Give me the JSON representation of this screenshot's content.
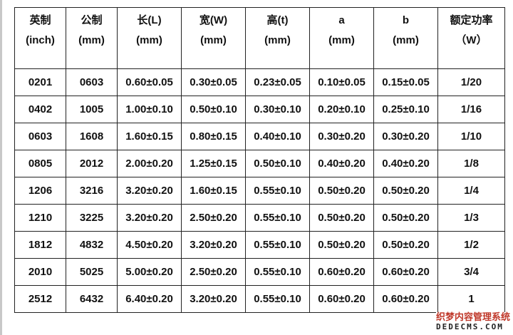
{
  "table": {
    "headers": [
      {
        "line1": "英制",
        "line2": "(inch)"
      },
      {
        "line1": "公制",
        "line2": "(mm)"
      },
      {
        "line1": "长(L)",
        "line2": "(mm)"
      },
      {
        "line1": "宽(W)",
        "line2": "(mm)"
      },
      {
        "line1": "高(t)",
        "line2": "(mm)"
      },
      {
        "line1": "a",
        "line2": "(mm)"
      },
      {
        "line1": "b",
        "line2": "(mm)"
      },
      {
        "line1": "额定功率",
        "line2": "（W）"
      }
    ],
    "rows": [
      [
        "0201",
        "0603",
        "0.60±0.05",
        "0.30±0.05",
        "0.23±0.05",
        "0.10±0.05",
        "0.15±0.05",
        "1/20"
      ],
      [
        "0402",
        "1005",
        "1.00±0.10",
        "0.50±0.10",
        "0.30±0.10",
        "0.20±0.10",
        "0.25±0.10",
        "1/16"
      ],
      [
        "0603",
        "1608",
        "1.60±0.15",
        "0.80±0.15",
        "0.40±0.10",
        "0.30±0.20",
        "0.30±0.20",
        "1/10"
      ],
      [
        "0805",
        "2012",
        "2.00±0.20",
        "1.25±0.15",
        "0.50±0.10",
        "0.40±0.20",
        "0.40±0.20",
        "1/8"
      ],
      [
        "1206",
        "3216",
        "3.20±0.20",
        "1.60±0.15",
        "0.55±0.10",
        "0.50±0.20",
        "0.50±0.20",
        "1/4"
      ],
      [
        "1210",
        "3225",
        "3.20±0.20",
        "2.50±0.20",
        "0.55±0.10",
        "0.50±0.20",
        "0.50±0.20",
        "1/3"
      ],
      [
        "1812",
        "4832",
        "4.50±0.20",
        "3.20±0.20",
        "0.55±0.10",
        "0.50±0.20",
        "0.50±0.20",
        "1/2"
      ],
      [
        "2010",
        "5025",
        "5.00±0.20",
        "2.50±0.20",
        "0.55±0.10",
        "0.60±0.20",
        "0.60±0.20",
        "3/4"
      ],
      [
        "2512",
        "6432",
        "6.40±0.20",
        "3.20±0.20",
        "0.55±0.10",
        "0.60±0.20",
        "0.60±0.20",
        "1"
      ]
    ]
  },
  "watermark": {
    "line1": "织梦内容管理系统",
    "line2": "DEDECMS.COM"
  }
}
